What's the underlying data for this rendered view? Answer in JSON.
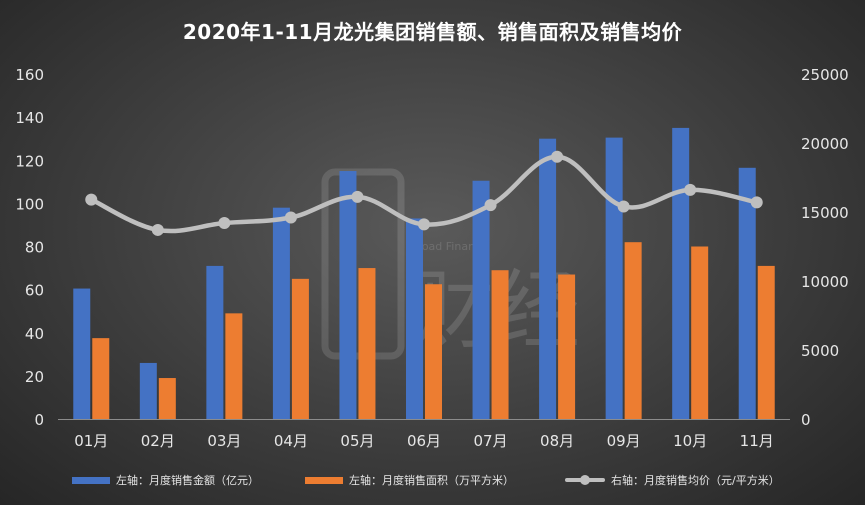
{
  "chart_data": {
    "type": "bar",
    "title": "2020年1-11月龙光集团销售额、销售面积及销售均价",
    "categories": [
      "01月",
      "02月",
      "03月",
      "04月",
      "05月",
      "06月",
      "07月",
      "08月",
      "09月",
      "10月",
      "11月"
    ],
    "left_axis": {
      "min": 0,
      "max": 160,
      "ticks": [
        0,
        20,
        40,
        60,
        80,
        100,
        120,
        140,
        160
      ]
    },
    "right_axis": {
      "min": 0,
      "max": 25000,
      "ticks": [
        0,
        5000,
        10000,
        15000,
        20000,
        25000
      ]
    },
    "series": [
      {
        "name": "左轴：月度销售金额（亿元）",
        "type": "bar",
        "axis": "left",
        "color": "#4472c4",
        "values": [
          60.5,
          26,
          71,
          98,
          115,
          93,
          110.5,
          130,
          130.5,
          135,
          116.5
        ]
      },
      {
        "name": "左轴：月度销售面积（万平方米）",
        "type": "bar",
        "axis": "left",
        "color": "#ed7d31",
        "values": [
          37.5,
          19,
          49,
          65,
          70,
          62.5,
          69,
          67,
          82,
          80,
          71
        ]
      },
      {
        "name": "右轴：月度销售均价（元/平方米）",
        "type": "line",
        "axis": "right",
        "color": "#bfbfbf",
        "values": [
          15900,
          13700,
          14200,
          14600,
          16100,
          14100,
          15500,
          19000,
          15400,
          16600,
          15700
        ]
      }
    ],
    "grid": false,
    "legend_position": "bottom"
  },
  "watermark": {
    "text": "Broad Finance",
    "brand": "财经"
  }
}
